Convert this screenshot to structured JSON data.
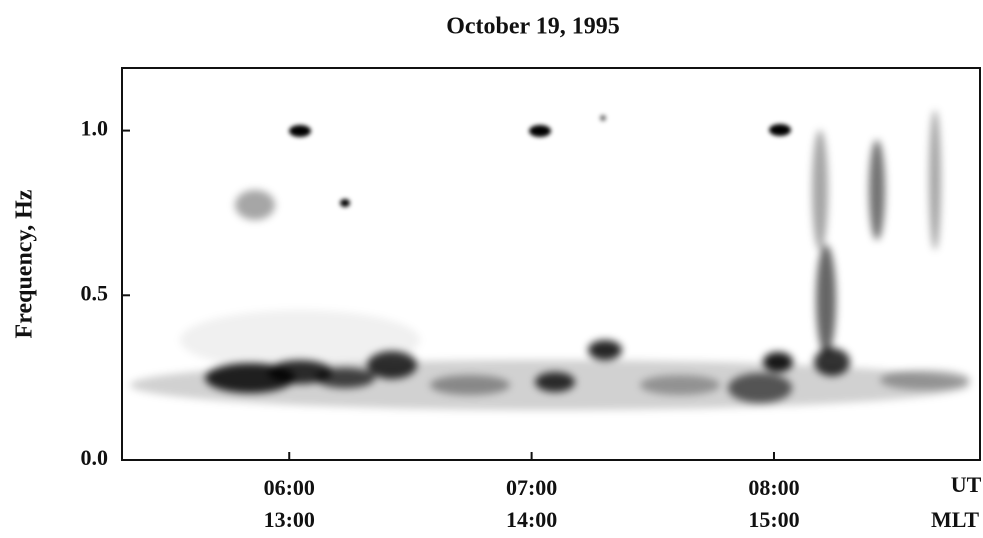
{
  "chart_data": {
    "type": "spectrogram",
    "title": "October 19, 1995",
    "y_label": "Frequency, Hz",
    "ylim": [
      0,
      1.19
    ],
    "yticks": [
      {
        "value": 0,
        "label": "0.0"
      },
      {
        "value": 0.5,
        "label": "0.5"
      },
      {
        "value": 1,
        "label": "1.0"
      }
    ],
    "xlim": [
      5.31,
      8.85
    ],
    "xticks": [
      {
        "value": 6,
        "label": "06:00"
      },
      {
        "value": 7,
        "label": "07:00"
      },
      {
        "value": 8,
        "label": "08:00"
      }
    ],
    "mlt_labels": [
      "13:00",
      "14:00",
      "15:00"
    ],
    "x_label": "UT",
    "x2_label": "MLT"
  }
}
